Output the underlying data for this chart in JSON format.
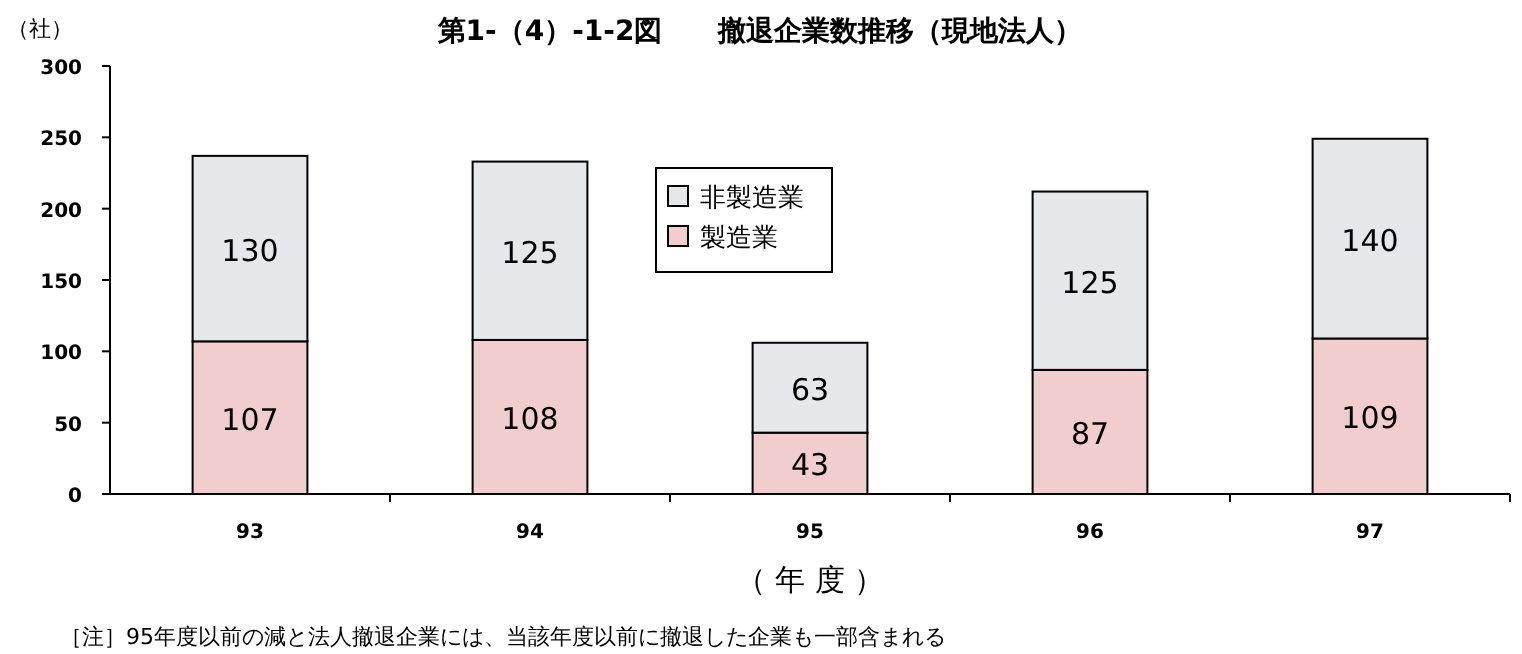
{
  "chart_data": {
    "type": "bar",
    "title": "第1-（4）-1-2図　　撤退企業数推移（現地法人）",
    "ylabel": "（社）",
    "xlabel": "（ 年 度 ）",
    "annotations": [
      "［注］95年度以前の減と法人撤退企業には、当該年度以前に撤退した企業も一部含まれる"
    ],
    "categories": [
      "93",
      "94",
      "95",
      "96",
      "97"
    ],
    "series": [
      {
        "name": "製造業",
        "color": "#f2cdcd",
        "values": [
          107,
          108,
          43,
          87,
          109
        ]
      },
      {
        "name": "非製造業",
        "color": "#e6e7eb",
        "values": [
          130,
          125,
          63,
          125,
          140
        ]
      }
    ],
    "stacked": true,
    "ylim": [
      0,
      300
    ],
    "yticks": [
      0,
      50,
      100,
      150,
      200,
      250,
      300
    ],
    "data_labels": true,
    "legend": "top"
  }
}
